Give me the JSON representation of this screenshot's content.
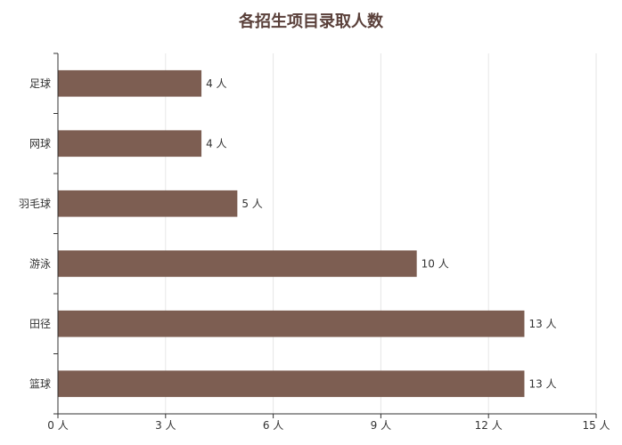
{
  "chart_data": {
    "type": "bar",
    "orientation": "horizontal",
    "title": "各招生项目录取人数",
    "categories": [
      "足球",
      "网球",
      "羽毛球",
      "游泳",
      "田径",
      "篮球"
    ],
    "values": [
      4,
      4,
      5,
      10,
      13,
      13
    ],
    "value_unit": "人",
    "xlim": [
      0,
      15
    ],
    "x_ticks": [
      0,
      3,
      6,
      9,
      12,
      15
    ],
    "x_tick_labels": [
      "0 人",
      "3 人",
      "6 人",
      "9 人",
      "12 人",
      "15 人"
    ],
    "data_labels": [
      "4 人",
      "4 人",
      "5 人",
      "10 人",
      "13 人",
      "13 人"
    ],
    "grid": "vertical",
    "legend": "none",
    "bar_color": "#7d5e52",
    "axis_color": "#333333",
    "grid_color": "#e6e6e6"
  }
}
